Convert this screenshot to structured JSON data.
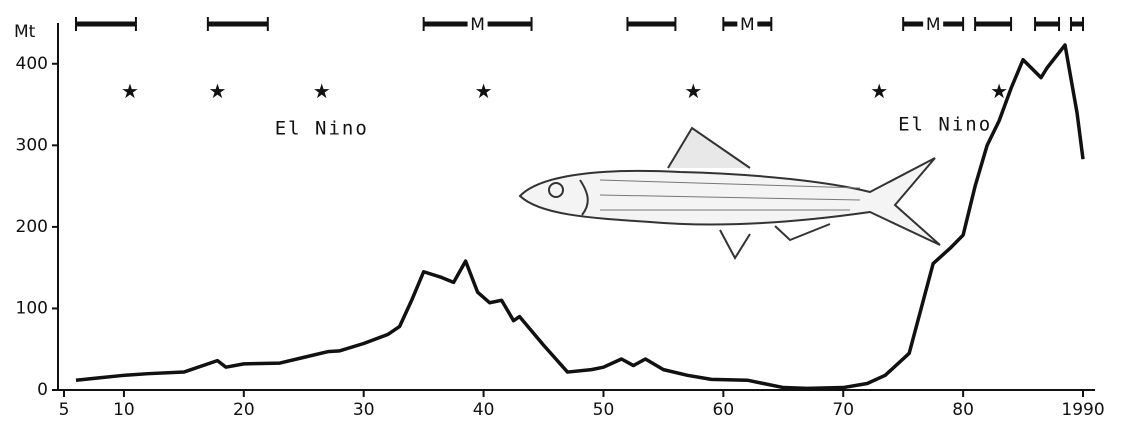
{
  "chart_data": {
    "type": "line",
    "y_label": "Mt",
    "color": "#111111",
    "x": [
      6,
      8,
      10,
      12,
      15,
      17,
      17.8,
      18.5,
      20,
      23,
      25,
      27,
      28,
      30,
      32,
      33,
      34,
      35,
      36.5,
      37.5,
      38.5,
      39.5,
      40.5,
      41.5,
      42.5,
      43,
      45,
      47,
      49,
      50,
      51.5,
      52.5,
      53.5,
      55,
      57,
      59,
      62,
      65,
      67,
      70,
      72,
      73.5,
      75.5,
      76.5,
      77.5,
      79,
      80,
      81,
      82,
      83,
      84,
      85,
      86.5,
      87,
      88.5,
      89.5,
      90
    ],
    "values": [
      12,
      15,
      18,
      20,
      22,
      32,
      36,
      28,
      32,
      33,
      40,
      47,
      48,
      57,
      68,
      78,
      110,
      145,
      138,
      132,
      158,
      120,
      107,
      110,
      85,
      90,
      55,
      22,
      25,
      28,
      38,
      30,
      38,
      25,
      18,
      13,
      12,
      3,
      2,
      3,
      8,
      18,
      45,
      100,
      155,
      175,
      190,
      250,
      300,
      330,
      370,
      405,
      383,
      395,
      423,
      340,
      283
    ],
    "xlim": [
      4.5,
      91
    ],
    "ylim": [
      0,
      450
    ],
    "xticks": [
      5,
      10,
      20,
      30,
      40,
      50,
      60,
      70,
      80,
      {
        "value": 90,
        "label": "1990"
      }
    ],
    "yticks": [
      0,
      100,
      200,
      300,
      400
    ],
    "el_nino_years": [
      10.5,
      17.8,
      26.5,
      40,
      57.5,
      73,
      83
    ],
    "annotations": [
      {
        "text": "El Nino",
        "x": 26.5,
        "y": 320
      },
      {
        "text": "El Nino",
        "x": 78.5,
        "y": 325
      }
    ],
    "periods": [
      {
        "start": 6,
        "end": 11
      },
      {
        "start": 17,
        "end": 22
      },
      {
        "start": 35,
        "end": 44,
        "label": "M"
      },
      {
        "start": 52,
        "end": 56
      },
      {
        "start": 60,
        "end": 64,
        "label": "M"
      },
      {
        "start": 75,
        "end": 80,
        "label": "M"
      },
      {
        "start": 81,
        "end": 84
      },
      {
        "start": 86,
        "end": 88
      },
      {
        "start": 89,
        "end": 90
      }
    ]
  }
}
